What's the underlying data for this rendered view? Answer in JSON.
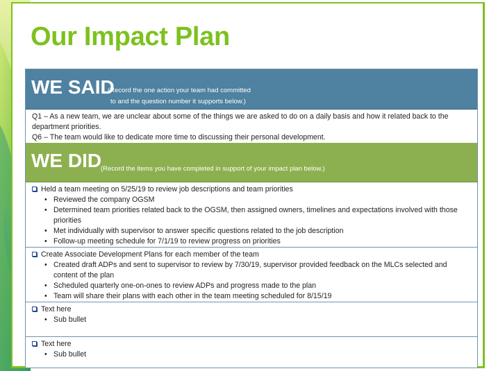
{
  "slide": {
    "title": "Our Impact Plan",
    "colors": {
      "title_green": "#7dc11f",
      "we_said_header": "#4f81a0",
      "we_did_header": "#8cb04f",
      "table_border": "#6d93ae"
    }
  },
  "we_said": {
    "heading": "WE SAID",
    "note_line1": "(Record the one action your team had committed",
    "note_line2": "to and the question number it supports below.)",
    "lines": [
      "Q1 – As a new team, we are unclear about some of the things we are asked to do on a daily basis and how it related back to the",
      "department priorities.",
      "Q6 – The team would like to dedicate more time to discussing their personal development."
    ]
  },
  "we_did": {
    "heading": "WE DID",
    "note": "(Record the items you have completed in support of your impact plan below.)",
    "items": [
      {
        "text": "Held a team meeting on 5/25/19 to review job descriptions and team priorities",
        "bullets": [
          "Reviewed the company OGSM",
          "Determined team priorities related back to the OGSM, then assigned owners, timelines and expectations involved with those priorities",
          "Met individually with supervisor to answer specific questions related to the job description",
          "Follow-up meeting schedule for 7/1/19 to review progress on priorities"
        ]
      },
      {
        "text": "Create Associate Development Plans for each member of the team",
        "bullets": [
          "Created draft ADPs and sent to supervisor to review by 7/30/19, supervisor provided feedback on the MLCs selected and content of the plan",
          "Scheduled quarterly one-on-ones to review ADPs and progress made to the plan",
          "Team will share their plans with each other in the team meeting scheduled for 8/15/19"
        ]
      },
      {
        "text": "Text here",
        "bullets": [
          "Sub bullet"
        ]
      },
      {
        "text": "Text here",
        "bullets": [
          "Sub bullet"
        ]
      }
    ]
  }
}
